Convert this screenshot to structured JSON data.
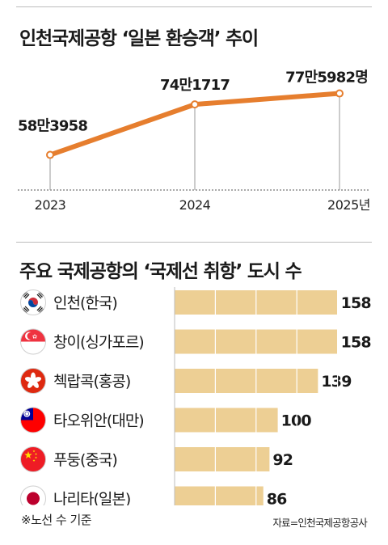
{
  "chart_data": [
    {
      "type": "line",
      "title": "인천국제공항 ‘일본 환승객’ 추이",
      "x": [
        "2023",
        "2024",
        "2025"
      ],
      "x_tick_labels": [
        "2023",
        "2024",
        "2025년"
      ],
      "values": [
        583958,
        741717,
        775982
      ],
      "data_labels": [
        "58만3958",
        "74만1717",
        "77만5982명"
      ],
      "color": "#e67e2e"
    },
    {
      "type": "bar",
      "title": "주요 국제공항의 ‘국제선 취항’ 도시 수",
      "categories": [
        "인천(한국)",
        "창이(싱가포르)",
        "첵랍콕(홍콩)",
        "타오위안(대만)",
        "푸둥(중국)",
        "나리타(일본)"
      ],
      "flags": [
        "korea-flag-icon",
        "singapore-flag-icon",
        "hongkong-flag-icon",
        "taiwan-flag-icon",
        "china-flag-icon",
        "japan-flag-icon"
      ],
      "values": [
        158,
        158,
        139,
        100,
        92,
        86
      ],
      "color": "#edcf94"
    }
  ],
  "footnote": "※노선 수 기준",
  "source": "자료=인천국제공항공사"
}
